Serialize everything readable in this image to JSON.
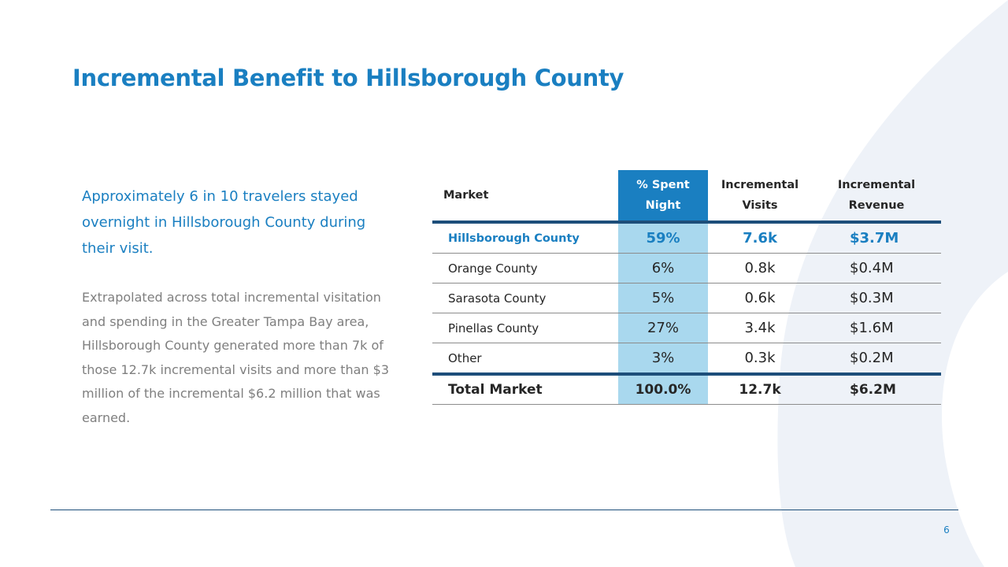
{
  "title": "Incremental Benefit to Hillsborough County",
  "lead": "Approximately 6 in 10 travelers stayed overnight in Hillsborough County during their visit.",
  "body": "Extrapolated across total incremental visitation and spending in the Greater Tampa Bay area, Hillsborough County generated more than 7k of those 12.7k incremental visits and more than $3 million of the incremental $6.2 million that was earned.",
  "table": {
    "headers": {
      "market": "Market",
      "spent": "% Spent Night",
      "visits": "Incremental Visits",
      "revenue": "Incremental Revenue"
    },
    "rows": [
      {
        "market": "Hillsborough  County",
        "spent": "59%",
        "visits": "7.6k",
        "revenue": "$3.7M"
      },
      {
        "market": "Orange County",
        "spent": "6%",
        "visits": "0.8k",
        "revenue": "$0.4M"
      },
      {
        "market": "Sarasota County",
        "spent": "5%",
        "visits": "0.6k",
        "revenue": "$0.3M"
      },
      {
        "market": "Pinellas County",
        "spent": "27%",
        "visits": "3.4k",
        "revenue": "$1.6M"
      },
      {
        "market": "Other",
        "spent": "3%",
        "visits": "0.3k",
        "revenue": "$0.2M"
      }
    ],
    "total": {
      "market": "Total Market",
      "spent": "100.0%",
      "visits": "12.7k",
      "revenue": "$6.2M"
    }
  },
  "page_number": "6",
  "colors": {
    "accent": "#1a7fc1",
    "header_fill": "#1a7fc1",
    "column_fill": "#a9d8ee",
    "rule": "#1d4e7a",
    "body_text": "#7f7f7f",
    "background_arc": "#eef2f8"
  }
}
